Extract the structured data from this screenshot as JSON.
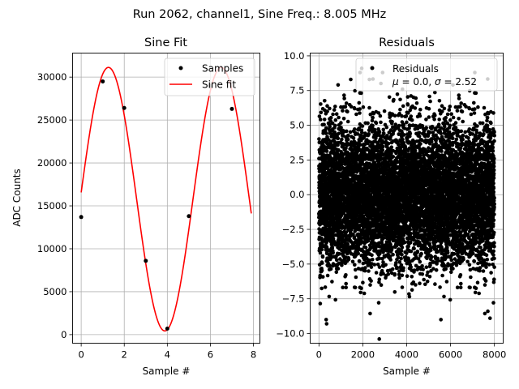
{
  "figure": {
    "suptitle": "Run 2062, channel1, Sine Freq.: 8.005 MHz"
  },
  "chart_data": [
    {
      "type": "line",
      "title": "Sine Fit",
      "xlabel": "Sample #",
      "ylabel": "ADC Counts",
      "xlim": [
        -0.4,
        8.3
      ],
      "ylim": [
        -1000,
        32800
      ],
      "xticks": [
        0,
        2,
        4,
        6,
        8
      ],
      "yticks": [
        0,
        5000,
        10000,
        15000,
        20000,
        25000,
        30000
      ],
      "grid": true,
      "legend": "top-right",
      "series": [
        {
          "name": "Samples",
          "style": "points",
          "color": "#000000",
          "x": [
            0,
            1,
            2,
            3,
            4,
            5,
            6,
            7
          ],
          "y": [
            13700,
            29500,
            26400,
            8600,
            700,
            13800,
            29000,
            26300
          ]
        },
        {
          "name": "Sine fit",
          "style": "line",
          "color": "#ff0000",
          "model": {
            "amplitude": 15350,
            "offset": 15780,
            "period_samples": 5.235,
            "phase": 0.0512,
            "x_start": 0,
            "x_end": 7.9
          }
        }
      ]
    },
    {
      "type": "scatter",
      "title": "Residuals",
      "xlabel": "Sample #",
      "xlim": [
        -400,
        8400
      ],
      "ylim": [
        -10.7,
        10.2
      ],
      "xticks": [
        0,
        2000,
        4000,
        6000,
        8000
      ],
      "yticks": [
        -10.0,
        -7.5,
        -5.0,
        -2.5,
        0.0,
        2.5,
        5.0,
        7.5,
        10.0
      ],
      "grid": true,
      "legend": "top-right",
      "series": [
        {
          "name": "Residuals",
          "color": "#000000",
          "n_points": 8000,
          "mean": 0.0,
          "sigma": 2.52,
          "x_range": [
            0,
            7999
          ],
          "outliers": [
            {
              "x": 350,
              "y": -9.3
            },
            {
              "x": 2750,
              "y": -10.4
            },
            {
              "x": 1950,
              "y": 9.1
            },
            {
              "x": 2300,
              "y": 8.3
            },
            {
              "x": 7700,
              "y": -8.4
            },
            {
              "x": 7800,
              "y": -8.9
            },
            {
              "x": 1450,
              "y": 8.3
            }
          ]
        }
      ],
      "legend_entries": [
        "Residuals",
        "μ = 0.0, σ = 2.52"
      ]
    }
  ]
}
